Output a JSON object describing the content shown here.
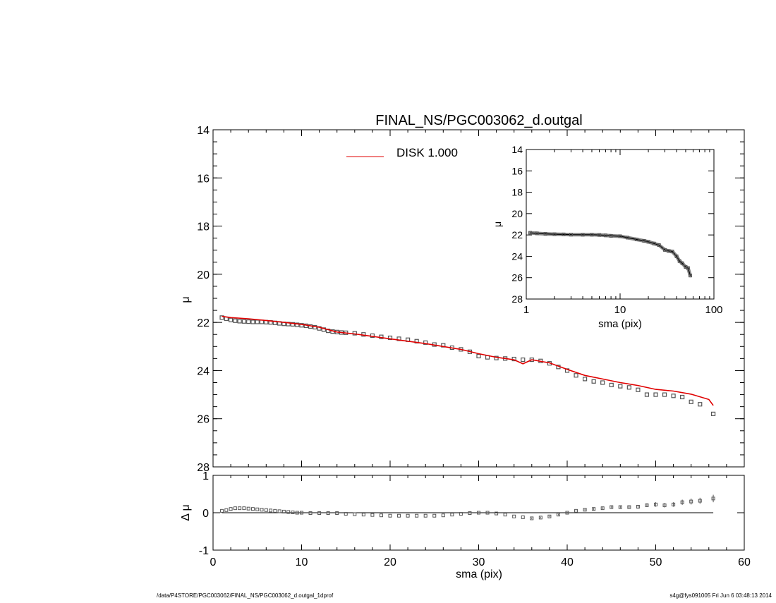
{
  "figure": {
    "title": "FINAL_NS/PGC003062_d.outgal",
    "footer_left": "/data/P4STORE/PGC003062/FINAL_NS/PGC003062_d.outgal_1dprof",
    "footer_right": "s4g@fys091005  Fri Jun  6 03:48:13 2014"
  },
  "colors": {
    "model": "#e00000",
    "data": "#555555",
    "axis": "#000000"
  },
  "chart_data": [
    {
      "name": "main-profile",
      "type": "scatter",
      "ylabel": "μ",
      "xlabel": "",
      "xlim": [
        0,
        60
      ],
      "ylim": [
        28,
        14
      ],
      "y_inverted": true,
      "xticks": [
        0,
        10,
        20,
        30,
        40,
        50,
        60
      ],
      "yticks": [
        14,
        16,
        18,
        20,
        22,
        24,
        26,
        28
      ],
      "show_xtick_labels": false,
      "legend": {
        "placement": "top-center",
        "label": "DISK  1.000",
        "color": "#e00000"
      },
      "series": [
        {
          "name": "data",
          "kind": "points",
          "x": [
            1,
            1.5,
            2,
            2.5,
            3,
            3.5,
            4,
            4.5,
            5,
            5.5,
            6,
            6.5,
            7,
            7.5,
            8,
            8.5,
            9,
            9.5,
            10,
            10.5,
            11,
            11.5,
            12,
            12.5,
            13,
            13.5,
            14,
            14.5,
            15,
            16,
            17,
            18,
            19,
            20,
            21,
            22,
            23,
            24,
            25,
            26,
            27,
            28,
            29,
            30,
            31,
            32,
            33,
            34,
            35,
            36,
            37,
            38,
            39,
            40,
            41,
            42,
            43,
            44,
            45,
            46,
            47,
            48,
            49,
            50,
            51,
            52,
            53,
            54,
            55,
            56.5
          ],
          "y": [
            21.8,
            21.85,
            21.9,
            21.93,
            21.95,
            21.96,
            21.97,
            21.98,
            21.98,
            21.98,
            21.99,
            22.0,
            22.02,
            22.04,
            22.06,
            22.07,
            22.08,
            22.1,
            22.12,
            22.14,
            22.17,
            22.2,
            22.25,
            22.3,
            22.35,
            22.38,
            22.4,
            22.42,
            22.43,
            22.45,
            22.5,
            22.55,
            22.6,
            22.64,
            22.68,
            22.72,
            22.78,
            22.84,
            22.92,
            22.95,
            23.05,
            23.12,
            23.22,
            23.4,
            23.45,
            23.48,
            23.5,
            23.52,
            23.55,
            23.55,
            23.6,
            23.7,
            23.85,
            24.0,
            24.2,
            24.35,
            24.45,
            24.5,
            24.6,
            24.65,
            24.7,
            24.8,
            25.0,
            25.0,
            25.0,
            25.05,
            25.1,
            25.3,
            25.4,
            25.8
          ]
        },
        {
          "name": "DISK  1.000",
          "kind": "line",
          "x": [
            1,
            2,
            4,
            6,
            8,
            10,
            12,
            14,
            16,
            18,
            20,
            22,
            24,
            26,
            28,
            30,
            32,
            34,
            35,
            36,
            38,
            40,
            42,
            44,
            46,
            48,
            50,
            52,
            54,
            56,
            56.5
          ],
          "y": [
            21.75,
            21.8,
            21.85,
            21.92,
            22.0,
            22.08,
            22.2,
            22.4,
            22.48,
            22.58,
            22.68,
            22.78,
            22.88,
            23.0,
            23.12,
            23.3,
            23.45,
            23.55,
            23.72,
            23.55,
            23.68,
            23.95,
            24.2,
            24.35,
            24.5,
            24.62,
            24.78,
            24.85,
            24.98,
            25.2,
            25.45
          ]
        }
      ]
    },
    {
      "name": "inset-log",
      "type": "scatter",
      "xscale": "log",
      "ylabel": "μ",
      "xlabel": "sma (pix)",
      "xlim": [
        1,
        100
      ],
      "ylim": [
        28,
        14
      ],
      "y_inverted": true,
      "xticks": [
        1,
        10,
        100
      ],
      "yticks": [
        14,
        16,
        18,
        20,
        22,
        24,
        26,
        28
      ],
      "series": [
        {
          "name": "data",
          "kind": "points",
          "x": [
            1.1,
            1.3,
            1.6,
            2,
            2.5,
            3,
            4,
            5,
            6,
            7,
            8,
            10,
            12,
            15,
            18,
            20,
            23,
            26,
            30,
            33,
            36,
            40,
            43,
            46,
            50,
            53,
            56
          ],
          "y": [
            21.8,
            21.85,
            21.9,
            21.93,
            21.95,
            21.97,
            21.98,
            21.98,
            22.0,
            22.04,
            22.08,
            22.12,
            22.25,
            22.42,
            22.55,
            22.64,
            22.8,
            22.95,
            23.4,
            23.5,
            23.55,
            24.0,
            24.45,
            24.65,
            25.0,
            25.1,
            25.8
          ]
        }
      ]
    },
    {
      "name": "residuals",
      "type": "scatter",
      "ylabel": "Δ μ",
      "xlabel": "sma (pix)",
      "xlim": [
        0,
        60
      ],
      "ylim": [
        -1,
        1
      ],
      "xticks": [
        0,
        10,
        20,
        30,
        40,
        50,
        60
      ],
      "yticks": [
        -1,
        0,
        1
      ],
      "zero_line": true,
      "series": [
        {
          "name": "residual",
          "kind": "points",
          "x": [
            1,
            1.5,
            2,
            2.5,
            3,
            3.5,
            4,
            4.5,
            5,
            5.5,
            6,
            6.5,
            7,
            7.5,
            8,
            8.5,
            9,
            9.5,
            10,
            11,
            12,
            13,
            14,
            15,
            16,
            17,
            18,
            19,
            20,
            21,
            22,
            23,
            24,
            25,
            26,
            27,
            28,
            29,
            30,
            31,
            32,
            33,
            34,
            35,
            36,
            37,
            38,
            39,
            40,
            41,
            42,
            43,
            44,
            45,
            46,
            47,
            48,
            49,
            50,
            51,
            52,
            53,
            54,
            55,
            56.5
          ],
          "y": [
            0.05,
            0.07,
            0.1,
            0.12,
            0.12,
            0.12,
            0.11,
            0.1,
            0.09,
            0.08,
            0.07,
            0.06,
            0.05,
            0.04,
            0.03,
            0.02,
            0.01,
            0.0,
            0.0,
            -0.01,
            -0.01,
            -0.01,
            -0.01,
            -0.03,
            -0.04,
            -0.05,
            -0.06,
            -0.07,
            -0.08,
            -0.08,
            -0.08,
            -0.08,
            -0.08,
            -0.08,
            -0.07,
            -0.05,
            -0.03,
            -0.01,
            0.0,
            0.0,
            -0.02,
            -0.05,
            -0.1,
            -0.12,
            -0.15,
            -0.13,
            -0.1,
            -0.05,
            0.0,
            0.05,
            0.08,
            0.1,
            0.12,
            0.15,
            0.15,
            0.15,
            0.16,
            0.2,
            0.22,
            0.2,
            0.22,
            0.28,
            0.3,
            0.32,
            0.38
          ],
          "err": [
            0.01,
            0.01,
            0.01,
            0.01,
            0.01,
            0.01,
            0.01,
            0.01,
            0.01,
            0.01,
            0.01,
            0.01,
            0.01,
            0.01,
            0.01,
            0.01,
            0.01,
            0.01,
            0.01,
            0.01,
            0.01,
            0.01,
            0.01,
            0.01,
            0.01,
            0.01,
            0.01,
            0.01,
            0.01,
            0.01,
            0.01,
            0.01,
            0.01,
            0.01,
            0.01,
            0.01,
            0.01,
            0.01,
            0.01,
            0.01,
            0.01,
            0.01,
            0.01,
            0.01,
            0.02,
            0.02,
            0.02,
            0.02,
            0.02,
            0.02,
            0.02,
            0.03,
            0.03,
            0.03,
            0.03,
            0.04,
            0.04,
            0.05,
            0.06,
            0.06,
            0.06,
            0.07,
            0.08,
            0.08,
            0.1
          ]
        }
      ]
    }
  ]
}
